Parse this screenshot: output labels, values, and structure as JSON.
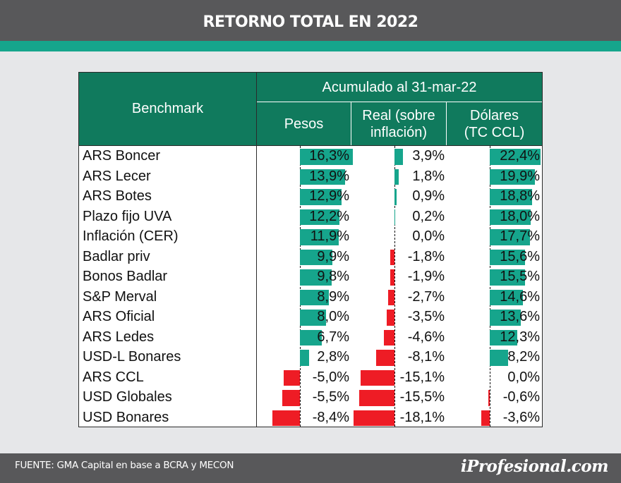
{
  "header": {
    "title": "RETORNO TOTAL EN 2022"
  },
  "footer": {
    "source": "FUENTE: GMA Capital en base a BCRA y MECON",
    "brand": "iProfesional.com"
  },
  "colors": {
    "positive": "#16a58c",
    "negative": "#ee1c25",
    "header_bg": "#107a5d"
  },
  "chart_data": {
    "type": "table",
    "title": "RETORNO TOTAL EN 2022",
    "columns": {
      "benchmark": "Benchmark",
      "group": "Acumulado al 31-mar-22",
      "pesos": "Pesos",
      "real": "Real (sobre inflación)",
      "real_line1": "Real (sobre",
      "real_line2": "inflación)",
      "dolares": "Dólares (TC CCL)",
      "dolares_line1": "Dólares",
      "dolares_line2": "(TC CCL)"
    },
    "rows": [
      {
        "benchmark": "ARS Boncer",
        "pesos": 16.3,
        "real": 3.9,
        "dolares": 22.4,
        "pesos_label": "16,3%",
        "real_label": "3,9%",
        "dolares_label": "22,4%"
      },
      {
        "benchmark": "ARS Lecer",
        "pesos": 13.9,
        "real": 1.8,
        "dolares": 19.9,
        "pesos_label": "13,9%",
        "real_label": "1,8%",
        "dolares_label": "19,9%"
      },
      {
        "benchmark": "ARS Botes",
        "pesos": 12.9,
        "real": 0.9,
        "dolares": 18.8,
        "pesos_label": "12,9%",
        "real_label": "0,9%",
        "dolares_label": "18,8%"
      },
      {
        "benchmark": "Plazo fijo UVA",
        "pesos": 12.2,
        "real": 0.2,
        "dolares": 18.0,
        "pesos_label": "12,2%",
        "real_label": "0,2%",
        "dolares_label": "18,0%"
      },
      {
        "benchmark": "Inflación (CER)",
        "pesos": 11.9,
        "real": 0.0,
        "dolares": 17.7,
        "pesos_label": "11,9%",
        "real_label": "0,0%",
        "dolares_label": "17,7%"
      },
      {
        "benchmark": "Badlar priv",
        "pesos": 9.9,
        "real": -1.8,
        "dolares": 15.6,
        "pesos_label": "9,9%",
        "real_label": "-1,8%",
        "dolares_label": "15,6%"
      },
      {
        "benchmark": "Bonos Badlar",
        "pesos": 9.8,
        "real": -1.9,
        "dolares": 15.5,
        "pesos_label": "9,8%",
        "real_label": "-1,9%",
        "dolares_label": "15,5%"
      },
      {
        "benchmark": "S&P Merval",
        "pesos": 8.9,
        "real": -2.7,
        "dolares": 14.6,
        "pesos_label": "8,9%",
        "real_label": "-2,7%",
        "dolares_label": "14,6%"
      },
      {
        "benchmark": "ARS Oficial",
        "pesos": 8.0,
        "real": -3.5,
        "dolares": 13.6,
        "pesos_label": "8,0%",
        "real_label": "-3,5%",
        "dolares_label": "13,6%"
      },
      {
        "benchmark": "ARS Ledes",
        "pesos": 6.7,
        "real": -4.6,
        "dolares": 12.3,
        "pesos_label": "6,7%",
        "real_label": "-4,6%",
        "dolares_label": "12,3%"
      },
      {
        "benchmark": "USD-L Bonares",
        "pesos": 2.8,
        "real": -8.1,
        "dolares": 8.2,
        "pesos_label": "2,8%",
        "real_label": "-8,1%",
        "dolares_label": "8,2%"
      },
      {
        "benchmark": "ARS CCL",
        "pesos": -5.0,
        "real": -15.1,
        "dolares": 0.0,
        "pesos_label": "-5,0%",
        "real_label": "-15,1%",
        "dolares_label": "0,0%"
      },
      {
        "benchmark": "USD Globales",
        "pesos": -5.5,
        "real": -15.5,
        "dolares": -0.6,
        "pesos_label": "-5,5%",
        "real_label": "-15,5%",
        "dolares_label": "-0,6%"
      },
      {
        "benchmark": "USD Bonares",
        "pesos": -8.4,
        "real": -18.1,
        "dolares": -3.6,
        "pesos_label": "-8,4%",
        "real_label": "-18,1%",
        "dolares_label": "-3,6%"
      }
    ]
  }
}
